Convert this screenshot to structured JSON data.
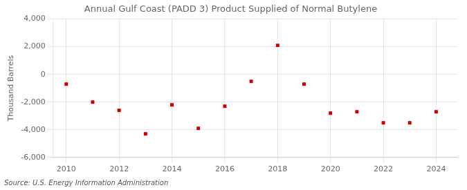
{
  "chart_data": {
    "type": "scatter",
    "title": "Annual Gulf Coast (PADD 3) Product Supplied of Normal Butylene",
    "ylabel": "Thousand Barrels",
    "annotations": [
      "Source: U.S. Energy Information Administration"
    ],
    "x": [
      2010,
      2011,
      2012,
      2013,
      2014,
      2015,
      2016,
      2017,
      2018,
      2019,
      2020,
      2021,
      2022,
      2023,
      2024
    ],
    "values": [
      -700,
      -2000,
      -2600,
      -4300,
      -2200,
      -3900,
      -2300,
      -500,
      2100,
      -700,
      -2800,
      -2700,
      -3500,
      -3500,
      -2700
    ],
    "color": "#cc0000",
    "marker": "square",
    "xlim": [
      2009.5,
      2024.8
    ],
    "xticks": [
      2010,
      2012,
      2014,
      2016,
      2018,
      2020,
      2022,
      2024
    ],
    "ylim": [
      -6000,
      4000
    ],
    "yticks": [
      {
        "value": -6000,
        "label": "-6,000"
      },
      {
        "value": -4000,
        "label": "-4,000"
      },
      {
        "value": -2000,
        "label": "-2,000"
      },
      0,
      {
        "value": 2000,
        "label": "2,000"
      },
      {
        "value": 4000,
        "label": "4,000"
      }
    ],
    "grid": true
  }
}
